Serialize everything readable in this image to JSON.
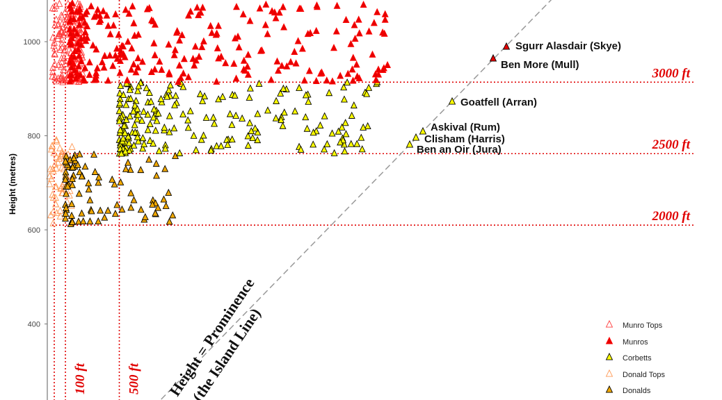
{
  "chart_data": {
    "type": "scatter",
    "ylabel": "Height (metres)",
    "ylim": [
      250,
      1090
    ],
    "xlim": [
      0,
      1350
    ],
    "y_ticks": [
      "400",
      "600",
      "800",
      "1000"
    ],
    "x_ticks": [],
    "grid": false,
    "legend_position": "bottom-right",
    "height_lines": [
      {
        "label": "3000 ft",
        "value": 914
      },
      {
        "label": "2500 ft",
        "value": 762
      },
      {
        "label": "2000 ft",
        "value": 610
      }
    ],
    "prominence_lines": [
      {
        "label": "100 ft",
        "value": 30
      },
      {
        "label": "500 ft",
        "value": 152
      }
    ],
    "diagonal_label": [
      "Height = Prominence",
      "(the Island Line)"
    ],
    "annotations": [
      {
        "label": "Sgurr Alasdair (Skye)",
        "x": 992,
        "y": 992
      },
      {
        "label": "Ben More (Mull)",
        "x": 966,
        "y": 966
      },
      {
        "label": "Goatfell (Arran)",
        "x": 874,
        "y": 874
      },
      {
        "label": "Askival (Rum)",
        "x": 812,
        "y": 812
      },
      {
        "label": "Clisham (Harris)",
        "x": 799,
        "y": 799
      },
      {
        "label": "Ben an Oir (Jura)",
        "x": 785,
        "y": 785
      }
    ],
    "series": [
      {
        "name": "Munro Tops",
        "marker": "open-triangle",
        "color": "#ff3b3b",
        "fill": "none",
        "n": 170,
        "y_range": [
          914,
          1090
        ],
        "x_range": [
          5,
          60
        ]
      },
      {
        "name": "Munros",
        "marker": "triangle",
        "color": "#ff0000",
        "fill": "#e60000",
        "n": 260,
        "y_range": [
          914,
          1090
        ],
        "x_range": [
          40,
          760
        ]
      },
      {
        "name": "Corbetts",
        "marker": "triangle",
        "color": "#000000",
        "fill": "#ffff00",
        "n": 210,
        "y_range": [
          762,
          914
        ],
        "x_range": [
          152,
          760
        ]
      },
      {
        "name": "Donald Tops",
        "marker": "open-triangle",
        "color": "#ff9955",
        "fill": "none",
        "n": 60,
        "y_range": [
          610,
          800
        ],
        "x_range": [
          0,
          60
        ]
      },
      {
        "name": "Donalds",
        "marker": "triangle",
        "color": "#000000",
        "fill": "#f0a800",
        "n": 90,
        "y_range": [
          610,
          762
        ],
        "x_range": [
          30,
          280
        ]
      }
    ]
  }
}
